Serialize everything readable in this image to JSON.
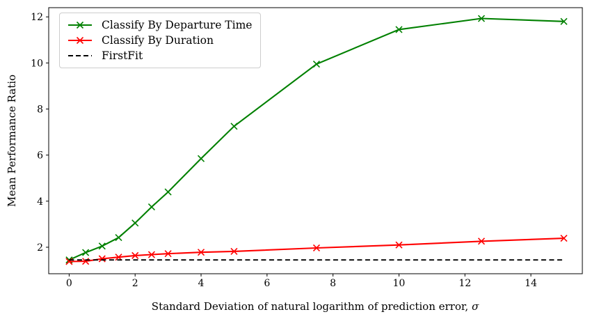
{
  "figure": {
    "kind": "line-chart"
  },
  "chart_data": {
    "type": "line",
    "title": "",
    "xlabel": "Standard Deviation of natural logarithm of prediction error, σ",
    "xlabel_prefix": "Standard Deviation of natural logarithm of prediction error, ",
    "xlabel_sigma": "σ",
    "ylabel": "Mean Performance Ratio",
    "xlim": [
      -0.62,
      15.56
    ],
    "ylim": [
      0.85,
      12.4
    ],
    "xticks": [
      0,
      2,
      4,
      6,
      8,
      10,
      12,
      14
    ],
    "yticks": [
      2,
      4,
      6,
      8,
      10,
      12
    ],
    "grid": false,
    "legend_position": "upper left",
    "x": [
      0,
      0.5,
      1,
      1.5,
      2,
      2.5,
      3,
      4,
      5,
      7.5,
      10,
      12.5,
      15
    ],
    "series": [
      {
        "name": "Classify By Departure Time",
        "color": "#008000",
        "marker": "x",
        "dash": false,
        "x": [
          0,
          0.5,
          1,
          1.5,
          2,
          2.5,
          3,
          4,
          5,
          7.5,
          10,
          12.5,
          15
        ],
        "values": [
          1.45,
          1.77,
          2.05,
          2.42,
          3.05,
          3.75,
          4.4,
          5.85,
          7.25,
          9.95,
          11.45,
          11.93,
          11.8
        ]
      },
      {
        "name": "Classify By Duration",
        "color": "#ff0000",
        "marker": "x",
        "dash": false,
        "x": [
          0,
          0.5,
          1,
          1.5,
          2,
          2.5,
          3,
          4,
          5,
          7.5,
          10,
          12.5,
          15
        ],
        "values": [
          1.38,
          1.39,
          1.5,
          1.57,
          1.64,
          1.68,
          1.72,
          1.78,
          1.82,
          1.97,
          2.1,
          2.26,
          2.39
        ]
      },
      {
        "name": "FirstFit",
        "color": "#000000",
        "marker": null,
        "dash": true,
        "x": [
          0,
          15
        ],
        "values": [
          1.45,
          1.45
        ]
      }
    ]
  }
}
